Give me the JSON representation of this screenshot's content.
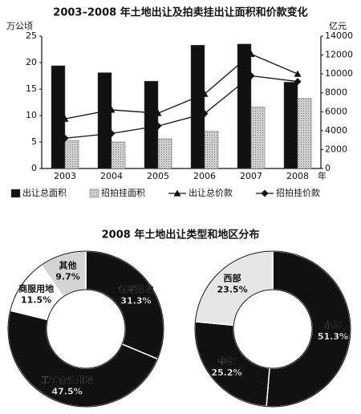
{
  "chart_data": [
    {
      "type": "bar",
      "title": "2003–2008 年土地出让及拍卖挂出让面积和价款变化",
      "ylabel": "万公顷",
      "y2label": "亿元",
      "xlabel": "年",
      "categories": [
        "2003",
        "2004",
        "2005",
        "2006",
        "2007",
        "2008"
      ],
      "ylim": [
        0,
        25
      ],
      "yticks": [
        0,
        5,
        10,
        15,
        20,
        25
      ],
      "y2lim": [
        0,
        14000
      ],
      "y2ticks": [
        0,
        2000,
        4000,
        6000,
        8000,
        10000,
        12000,
        14000
      ],
      "series": [
        {
          "name": "出让总面积",
          "type": "bar",
          "color": "#111111",
          "values": [
            19.4,
            18.1,
            16.5,
            23.3,
            23.5,
            16.3
          ]
        },
        {
          "name": "招拍挂面积",
          "type": "bar",
          "color": "#bdbdbd",
          "values": [
            5.3,
            5.0,
            5.6,
            7.0,
            11.6,
            13.2
          ]
        },
        {
          "name": "出让总价款",
          "type": "line",
          "marker": "triangle",
          "axis": "y2",
          "color": "#111111",
          "values": [
            5250,
            6200,
            5850,
            7880,
            12100,
            10000
          ]
        },
        {
          "name": "招拍挂价款",
          "type": "line",
          "marker": "diamond",
          "axis": "y2",
          "color": "#111111",
          "values": [
            3200,
            3700,
            4500,
            5800,
            9800,
            9200
          ]
        }
      ]
    },
    {
      "type": "pie",
      "donut": true,
      "categories": [
        "住宅用地",
        "工矿仓储用地",
        "商服用地",
        "其他"
      ],
      "values": [
        31.3,
        47.5,
        11.5,
        9.7
      ],
      "value_labels": [
        "31.3%",
        "47.5%",
        "11.5%",
        "9.7%"
      ],
      "colors": [
        "#111111",
        "#111111",
        "#ffffff",
        "#d4d4d4"
      ]
    },
    {
      "type": "pie",
      "donut": true,
      "categories": [
        "东部",
        "中部",
        "西部"
      ],
      "values": [
        51.3,
        25.2,
        23.5
      ],
      "value_labels": [
        "51.3%",
        "25.2%",
        "23.5%"
      ],
      "colors": [
        "#111111",
        "#111111",
        "#e6e6e6"
      ]
    }
  ],
  "section_title": "2008 年土地出让类型和地区分布"
}
